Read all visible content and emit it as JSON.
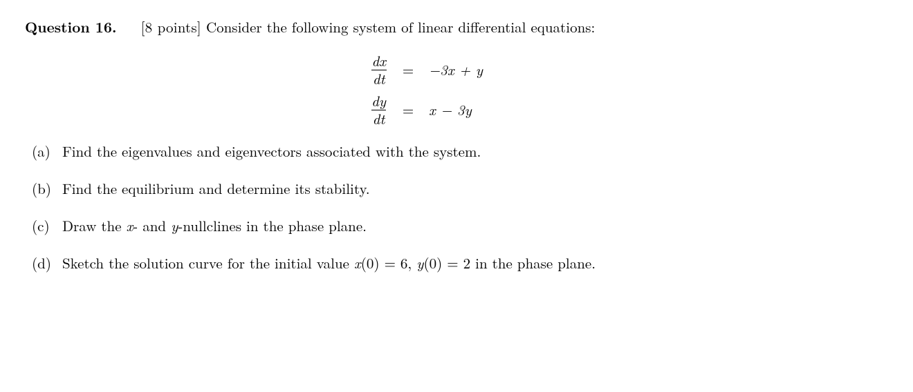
{
  "question": {
    "label": "Question 16.",
    "points": "[8 points]",
    "intro": "Consider the following system of linear differential equations:"
  },
  "equations": {
    "eq1": {
      "lhs_num": "dx",
      "lhs_den": "dt",
      "eq": "=",
      "rhs": "−3x + y"
    },
    "eq2": {
      "lhs_num": "dy",
      "lhs_den": "dt",
      "eq": "=",
      "rhs": "x − 3y"
    }
  },
  "parts": {
    "a": {
      "label": "(a)",
      "text": "Find the eigenvalues and eigenvectors associated with the system."
    },
    "b": {
      "label": "(b)",
      "text": "Find the equilibrium and determine its stability."
    },
    "c": {
      "label": "(c)",
      "prefix": "Draw the ",
      "x_var": "x",
      "mid": "- and ",
      "y_var": "y",
      "suffix": "-nullclines in the phase plane."
    },
    "d": {
      "label": "(d)",
      "prefix": "Sketch the solution curve for the initial value ",
      "x_of_0": "x",
      "paren1": "(0) = 6, ",
      "y_of_0": "y",
      "paren2": "(0) = 2",
      "suffix": " in the phase plane."
    }
  }
}
